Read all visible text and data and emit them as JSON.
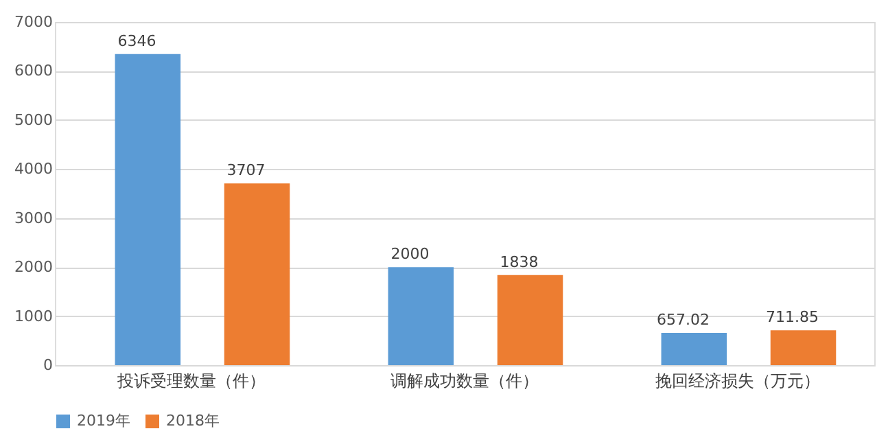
{
  "chart_data": {
    "type": "bar",
    "categories": [
      "投诉受理数量（件）",
      "调解成功数量（件）",
      "挽回经济损失（万元）"
    ],
    "series": [
      {
        "name": "2019年",
        "color": "#5b9bd5",
        "values": [
          6346,
          2000,
          657.02
        ]
      },
      {
        "name": "2018年",
        "color": "#ed7d31",
        "values": [
          3707,
          1838,
          711.85
        ]
      }
    ],
    "ylim": [
      0,
      7000
    ],
    "yticks": [
      0,
      1000,
      2000,
      3000,
      4000,
      5000,
      6000,
      7000
    ],
    "grid": "y",
    "legend": "bottom",
    "data_labels": true
  }
}
